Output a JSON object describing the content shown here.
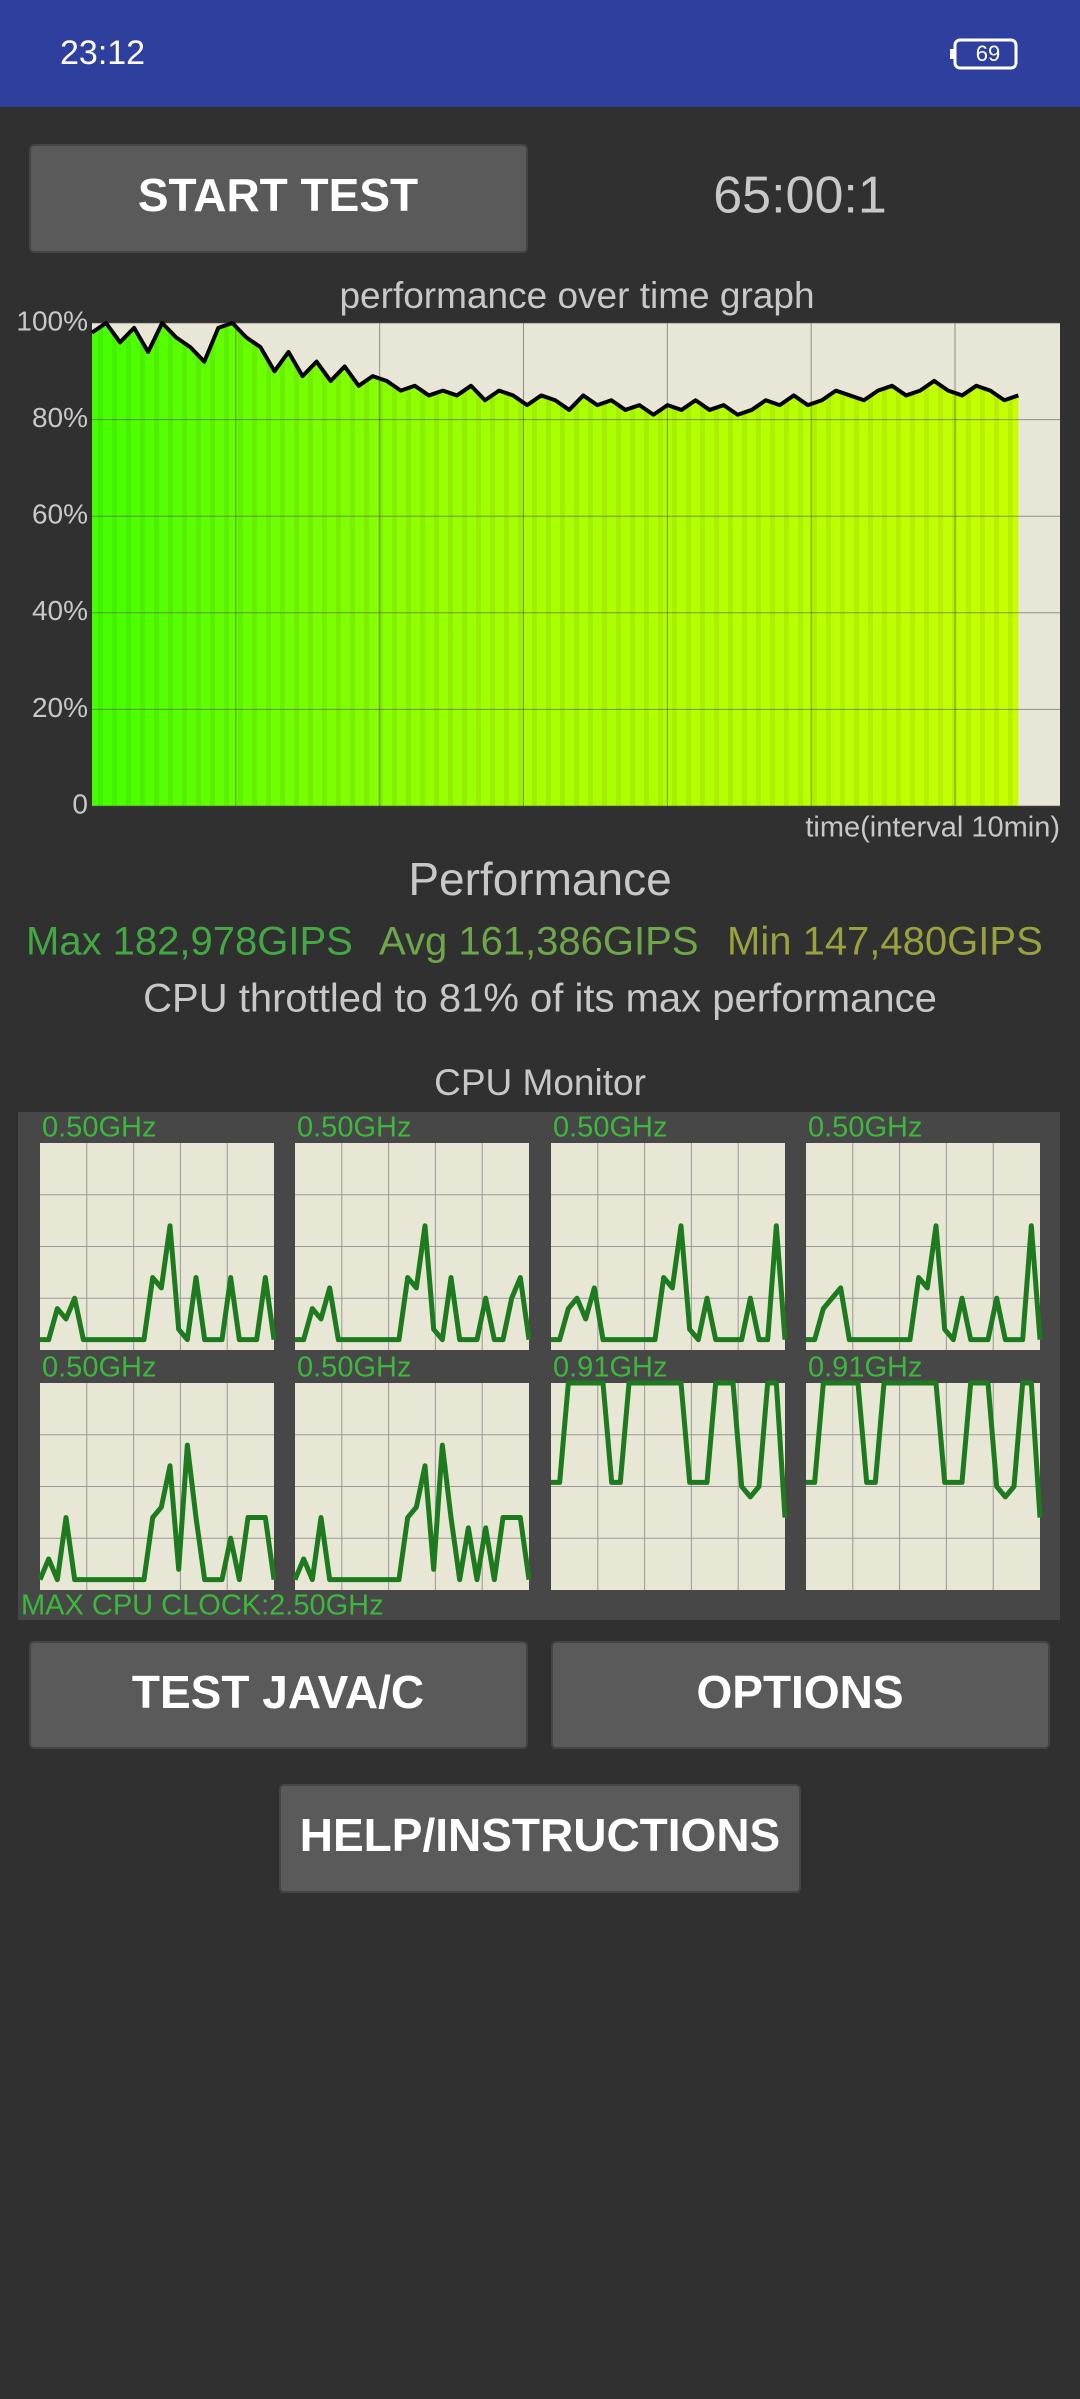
{
  "status_bar": {
    "time": "23:12",
    "battery": "69"
  },
  "buttons": {
    "start": "START TEST",
    "test_java": "TEST JAVA/C",
    "options": "OPTIONS",
    "help": "HELP/INSTRUCTIONS"
  },
  "timer": "65:00:1",
  "chart_data": {
    "type": "line",
    "title": "performance over time graph",
    "x_label": "time(interval 10min)",
    "values": [
      98,
      100,
      96,
      99,
      94,
      100,
      97,
      95,
      92,
      99,
      100,
      97,
      95,
      90,
      94,
      89,
      92,
      88,
      91,
      87,
      89,
      88,
      86,
      87,
      85,
      86,
      85,
      87,
      84,
      86,
      85,
      83,
      85,
      84,
      82,
      85,
      83,
      84,
      82,
      83,
      81,
      83,
      82,
      84,
      82,
      83,
      81,
      82,
      84,
      83,
      85,
      83,
      84,
      86,
      85,
      84,
      86,
      87,
      85,
      86,
      88,
      86,
      85,
      87,
      86,
      84,
      85
    ],
    "color": "#000000",
    "ylim": [
      0,
      100
    ],
    "yticks": [
      0,
      {
        "value": 20,
        "label": "20%"
      },
      {
        "value": 40,
        "label": "40%"
      },
      {
        "value": 60,
        "label": "60%"
      },
      {
        "value": 80,
        "label": "80%"
      },
      {
        "value": 100,
        "label": "100%"
      }
    ]
  },
  "performance": {
    "heading": "Performance",
    "max": "Max 182,978GIPS",
    "avg": "Avg 161,386GIPS",
    "min": "Min 147,480GIPS",
    "throttle_note": "CPU throttled to 81% of its max performance"
  },
  "cpu_monitor": {
    "title": "CPU Monitor",
    "max_clock": "MAX CPU CLOCK:2.50GHz",
    "ylim": [
      0,
      100
    ],
    "cores": [
      {
        "label": "0.50GHz",
        "values": [
          5,
          5,
          20,
          15,
          25,
          5,
          5,
          5,
          5,
          5,
          5,
          5,
          5,
          35,
          30,
          60,
          10,
          5,
          35,
          5,
          5,
          5,
          35,
          5,
          5,
          5,
          35,
          5
        ]
      },
      {
        "label": "0.50GHz",
        "values": [
          5,
          5,
          20,
          15,
          30,
          5,
          5,
          5,
          5,
          5,
          5,
          5,
          5,
          35,
          30,
          60,
          10,
          5,
          35,
          5,
          5,
          5,
          25,
          5,
          5,
          25,
          35,
          5
        ]
      },
      {
        "label": "0.50GHz",
        "values": [
          5,
          5,
          20,
          25,
          15,
          30,
          5,
          5,
          5,
          5,
          5,
          5,
          5,
          35,
          30,
          60,
          10,
          5,
          25,
          5,
          5,
          5,
          5,
          25,
          5,
          5,
          60,
          5
        ]
      },
      {
        "label": "0.50GHz",
        "values": [
          5,
          5,
          20,
          25,
          30,
          5,
          5,
          5,
          5,
          5,
          5,
          5,
          5,
          35,
          30,
          60,
          10,
          5,
          25,
          5,
          5,
          5,
          25,
          5,
          5,
          5,
          60,
          5
        ]
      },
      {
        "label": "0.50GHz",
        "values": [
          5,
          15,
          5,
          35,
          5,
          5,
          5,
          5,
          5,
          5,
          5,
          5,
          5,
          35,
          40,
          60,
          10,
          70,
          35,
          5,
          5,
          5,
          25,
          5,
          35,
          35,
          35,
          5
        ]
      },
      {
        "label": "0.50GHz",
        "values": [
          5,
          15,
          5,
          35,
          5,
          5,
          5,
          5,
          5,
          5,
          5,
          5,
          5,
          35,
          40,
          60,
          10,
          70,
          35,
          5,
          30,
          5,
          30,
          5,
          35,
          35,
          35,
          5
        ]
      },
      {
        "label": "0.91GHz",
        "values": [
          52,
          52,
          100,
          100,
          100,
          100,
          100,
          52,
          52,
          100,
          100,
          100,
          100,
          100,
          100,
          100,
          52,
          52,
          52,
          100,
          100,
          100,
          50,
          45,
          50,
          100,
          100,
          35
        ]
      },
      {
        "label": "0.91GHz",
        "values": [
          52,
          52,
          100,
          100,
          100,
          100,
          100,
          52,
          52,
          100,
          100,
          100,
          100,
          100,
          100,
          100,
          52,
          52,
          52,
          100,
          100,
          100,
          50,
          45,
          50,
          100,
          100,
          35
        ]
      }
    ]
  }
}
